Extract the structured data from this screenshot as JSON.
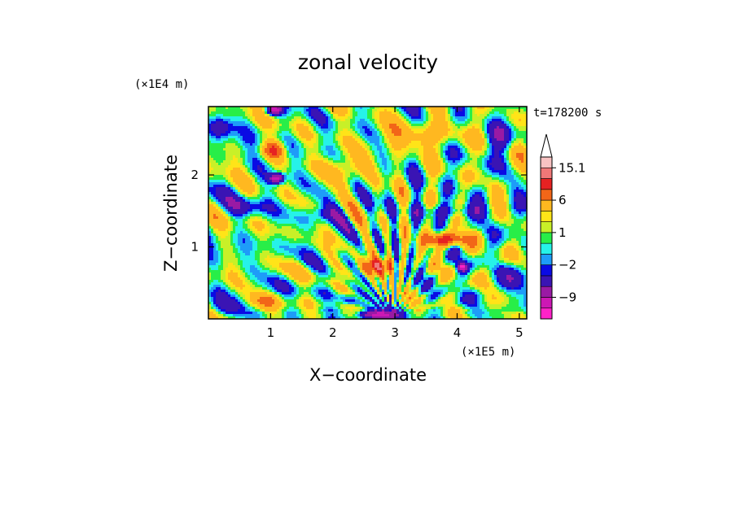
{
  "chart_data": {
    "type": "heatmap",
    "title": "zonal velocity",
    "xlabel": "X−coordinate",
    "ylabel": "Z−coordinate",
    "x_unit": "(×1E5 m)",
    "y_unit": "(×1E4 m)",
    "time_label": "t=178200 s",
    "xlim": [
      0,
      5.12
    ],
    "ylim": [
      0,
      2.95
    ],
    "x_ticks": [
      1,
      2,
      3,
      4,
      5
    ],
    "y_ticks": [
      1,
      2
    ],
    "x_tick_labels": [
      "1",
      "2",
      "3",
      "4",
      "5"
    ],
    "y_tick_labels": [
      "1",
      "2"
    ],
    "colorbar": {
      "levels": [
        -15,
        -12,
        -9,
        -6,
        -3,
        -2,
        -1,
        0,
        1,
        2,
        3,
        6,
        9,
        12,
        15.1
      ],
      "colors": [
        "#ff22c8",
        "#cc18b4",
        "#9a1aa4",
        "#3a14b4",
        "#0a0ae4",
        "#1e9cf8",
        "#26f2e8",
        "#28ee48",
        "#c8f028",
        "#ffe418",
        "#ffb820",
        "#f26618",
        "#e62222",
        "#f07878",
        "#f8c2c2"
      ],
      "extend_top_color": "#ffffff",
      "labels": [
        {
          "value": 15.1,
          "text": "15.1"
        },
        {
          "value": 6,
          "text": "6"
        },
        {
          "value": 1,
          "text": "1"
        },
        {
          "value": -2,
          "text": "−2"
        },
        {
          "value": -9,
          "text": "−9"
        }
      ]
    },
    "field": {
      "background": 0.5,
      "blobs": [
        {
          "x": 1.05,
          "z": 2.35,
          "v": 8,
          "sx": 0.18,
          "sz": 0.12
        },
        {
          "x": 1.1,
          "z": 1.95,
          "v": -12,
          "sx": 0.12,
          "sz": 0.07
        },
        {
          "x": 1.05,
          "z": 2.9,
          "v": -12,
          "sx": 0.12,
          "sz": 0.07
        },
        {
          "x": 0.2,
          "z": 2.65,
          "v": -4,
          "sx": 0.18,
          "sz": 0.14
        },
        {
          "x": 0.6,
          "z": 1.55,
          "v": -4,
          "sx": 0.35,
          "sz": 0.12
        },
        {
          "x": 1.9,
          "z": 1.45,
          "v": -4,
          "sx": 0.3,
          "sz": 0.12
        },
        {
          "x": 0.3,
          "z": 0.15,
          "v": -3,
          "sx": 0.3,
          "sz": 0.1
        },
        {
          "x": 0.9,
          "z": 0.25,
          "v": 4,
          "sx": 0.3,
          "sz": 0.1
        },
        {
          "x": 2.7,
          "z": 0.72,
          "v": 9,
          "sx": 0.3,
          "sz": 0.12
        },
        {
          "x": 3.8,
          "z": 1.1,
          "v": 11,
          "sx": 0.35,
          "sz": 0.1
        },
        {
          "x": 2.7,
          "z": 0.05,
          "v": -12,
          "sx": 0.3,
          "sz": 0.07
        },
        {
          "x": 4.08,
          "z": 0.72,
          "v": -12,
          "sx": 0.08,
          "sz": 0.06
        },
        {
          "x": 3.9,
          "z": 1.5,
          "v": -4,
          "sx": 0.6,
          "sz": 0.1
        },
        {
          "x": 3.4,
          "z": 2.55,
          "v": 4,
          "sx": 0.7,
          "sz": 0.2
        },
        {
          "x": 2.2,
          "z": 2.1,
          "v": 4,
          "sx": 0.4,
          "sz": 0.2
        },
        {
          "x": 4.7,
          "z": 2.5,
          "v": -4,
          "sx": 0.25,
          "sz": 0.2
        },
        {
          "x": 4.9,
          "z": 0.5,
          "v": -4,
          "sx": 0.2,
          "sz": 0.2
        },
        {
          "x": 2.25,
          "z": 0.25,
          "v": -4,
          "sx": 0.15,
          "sz": 0.1
        }
      ],
      "waves": [
        {
          "ax": 8,
          "az": 5,
          "v": 1.6,
          "p": 0.3
        },
        {
          "ax": 5,
          "az": 9,
          "v": 1.4,
          "p": 1.1
        },
        {
          "ax": 11,
          "az": 3,
          "v": 1.2,
          "p": 2.0
        },
        {
          "ax": 3,
          "az": 13,
          "v": 1.0,
          "p": 0.7
        }
      ]
    }
  }
}
